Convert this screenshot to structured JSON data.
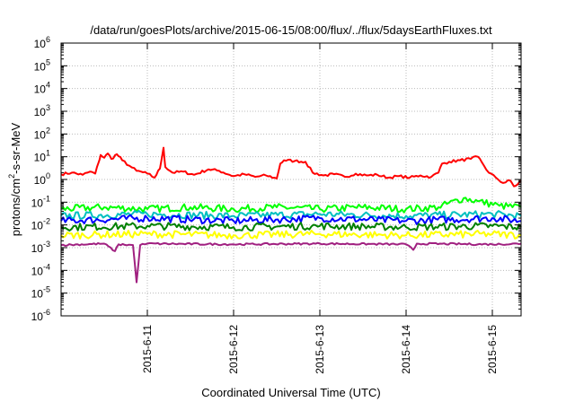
{
  "chart_data": {
    "type": "line",
    "title": "/data/run/goesPlots/archive/2015-06-15/08:00/flux/../flux/5daysEarthFluxes.txt",
    "xlabel": "Coordinated Universal Time (UTC)",
    "ylabel": {
      "prefix": "protons/cm",
      "sup": "2",
      "suffix": "-s-sr-MeV"
    },
    "y_scale": "log",
    "ylim_exp": [
      -6,
      6
    ],
    "y_tick_base": "10",
    "y_ticks": [
      "-6",
      "-5",
      "-4",
      "-3",
      "-2",
      "-1",
      "0",
      "1",
      "2",
      "3",
      "4",
      "5",
      "6"
    ],
    "xlim": [
      "2015-06-10T00:00",
      "2015-06-15T08:00"
    ],
    "x_ticks": [
      {
        "label": "2015-6-11",
        "at": "2015-06-11T00:00"
      },
      {
        "label": "2015-6-12",
        "at": "2015-06-12T00:00"
      },
      {
        "label": "2015-6-13",
        "at": "2015-06-13T00:00"
      },
      {
        "label": "2015-6-14",
        "at": "2015-06-14T00:00"
      },
      {
        "label": "2015-6-15",
        "at": "2015-06-15T00:00"
      }
    ],
    "grid": true,
    "series": [
      {
        "color": "#ff0000",
        "points": [
          [
            "2015-06-10T00:00",
            1.7
          ],
          [
            "2015-06-10T03:00",
            2.0
          ],
          [
            "2015-06-10T06:00",
            1.6
          ],
          [
            "2015-06-10T08:00",
            2.2
          ],
          [
            "2015-06-10T09:30",
            1.8
          ],
          [
            "2015-06-10T10:30",
            6.0
          ],
          [
            "2015-06-10T11:00",
            12
          ],
          [
            "2015-06-10T12:00",
            9
          ],
          [
            "2015-06-10T13:00",
            14
          ],
          [
            "2015-06-10T14:00",
            8
          ],
          [
            "2015-06-10T15:30",
            13
          ],
          [
            "2015-06-10T17:00",
            7
          ],
          [
            "2015-06-10T19:00",
            4
          ],
          [
            "2015-06-10T21:00",
            2.4
          ],
          [
            "2015-06-11T00:00",
            1.8
          ],
          [
            "2015-06-11T02:00",
            1.2
          ],
          [
            "2015-06-11T03:30",
            3.0
          ],
          [
            "2015-06-11T04:30",
            25
          ],
          [
            "2015-06-11T05:00",
            3.5
          ],
          [
            "2015-06-11T07:00",
            2.0
          ],
          [
            "2015-06-11T10:00",
            2.2
          ],
          [
            "2015-06-11T13:00",
            1.6
          ],
          [
            "2015-06-11T17:00",
            2.8
          ],
          [
            "2015-06-11T20:00",
            2.4
          ],
          [
            "2015-06-12T00:00",
            1.4
          ],
          [
            "2015-06-12T03:00",
            1.7
          ],
          [
            "2015-06-12T06:00",
            1.3
          ],
          [
            "2015-06-12T09:00",
            1.5
          ],
          [
            "2015-06-12T12:00",
            1.1
          ],
          [
            "2015-06-12T13:00",
            5
          ],
          [
            "2015-06-12T14:00",
            7
          ],
          [
            "2015-06-12T17:00",
            6.5
          ],
          [
            "2015-06-12T20:00",
            6
          ],
          [
            "2015-06-12T22:00",
            2.0
          ],
          [
            "2015-06-13T01:00",
            1.5
          ],
          [
            "2015-06-13T04:00",
            1.7
          ],
          [
            "2015-06-13T07:00",
            1.3
          ],
          [
            "2015-06-13T10:00",
            1.8
          ],
          [
            "2015-06-13T13:00",
            1.5
          ],
          [
            "2015-06-13T16:00",
            1.6
          ],
          [
            "2015-06-13T19:00",
            1.2
          ],
          [
            "2015-06-13T22:00",
            1.4
          ],
          [
            "2015-06-14T01:00",
            1.2
          ],
          [
            "2015-06-14T04:00",
            1.5
          ],
          [
            "2015-06-14T07:00",
            1.3
          ],
          [
            "2015-06-14T09:00",
            2.0
          ],
          [
            "2015-06-14T10:00",
            5
          ],
          [
            "2015-06-14T12:00",
            6
          ],
          [
            "2015-06-14T15:00",
            7
          ],
          [
            "2015-06-14T18:00",
            8
          ],
          [
            "2015-06-14T20:00",
            10
          ],
          [
            "2015-06-14T21:00",
            6
          ],
          [
            "2015-06-14T23:00",
            2.0
          ],
          [
            "2015-06-15T01:00",
            1.2
          ],
          [
            "2015-06-15T03:00",
            0.7
          ],
          [
            "2015-06-15T05:00",
            0.9
          ],
          [
            "2015-06-15T06:00",
            0.5
          ],
          [
            "2015-06-15T07:00",
            0.6
          ],
          [
            "2015-06-15T08:00",
            0.9
          ]
        ]
      },
      {
        "color": "#00ff00",
        "points": [
          [
            "2015-06-10T00:00",
            0.05
          ],
          [
            "2015-06-10T12:00",
            0.06
          ],
          [
            "2015-06-11T00:00",
            0.05
          ],
          [
            "2015-06-11T12:00",
            0.06
          ],
          [
            "2015-06-12T00:00",
            0.05
          ],
          [
            "2015-06-12T12:00",
            0.06
          ],
          [
            "2015-06-13T00:00",
            0.05
          ],
          [
            "2015-06-13T12:00",
            0.06
          ],
          [
            "2015-06-14T00:00",
            0.05
          ],
          [
            "2015-06-14T09:00",
            0.06
          ],
          [
            "2015-06-14T16:00",
            0.15
          ],
          [
            "2015-06-14T20:00",
            0.11
          ],
          [
            "2015-06-15T02:00",
            0.07
          ],
          [
            "2015-06-15T08:00",
            0.06
          ]
        ]
      },
      {
        "color": "#00c0c0",
        "points": [
          [
            "2015-06-10T00:00",
            0.025
          ],
          [
            "2015-06-11T00:00",
            0.03
          ],
          [
            "2015-06-12T00:00",
            0.025
          ],
          [
            "2015-06-13T00:00",
            0.03
          ],
          [
            "2015-06-14T00:00",
            0.025
          ],
          [
            "2015-06-15T00:00",
            0.03
          ],
          [
            "2015-06-15T08:00",
            0.025
          ]
        ]
      },
      {
        "color": "#0000ff",
        "points": [
          [
            "2015-06-10T00:00",
            0.015
          ],
          [
            "2015-06-11T00:00",
            0.02
          ],
          [
            "2015-06-12T00:00",
            0.015
          ],
          [
            "2015-06-13T00:00",
            0.02
          ],
          [
            "2015-06-14T00:00",
            0.015
          ],
          [
            "2015-06-15T00:00",
            0.02
          ],
          [
            "2015-06-15T08:00",
            0.015
          ]
        ]
      },
      {
        "color": "#008000",
        "points": [
          [
            "2015-06-10T00:00",
            0.008
          ],
          [
            "2015-06-11T00:00",
            0.009
          ],
          [
            "2015-06-12T00:00",
            0.008
          ],
          [
            "2015-06-13T00:00",
            0.009
          ],
          [
            "2015-06-14T00:00",
            0.008
          ],
          [
            "2015-06-15T00:00",
            0.009
          ],
          [
            "2015-06-15T08:00",
            0.008
          ]
        ]
      },
      {
        "color": "#ffff00",
        "points": [
          [
            "2015-06-10T00:00",
            0.0035
          ],
          [
            "2015-06-11T00:00",
            0.004
          ],
          [
            "2015-06-12T00:00",
            0.0035
          ],
          [
            "2015-06-13T00:00",
            0.004
          ],
          [
            "2015-06-14T00:00",
            0.0035
          ],
          [
            "2015-06-15T00:00",
            0.004
          ],
          [
            "2015-06-15T08:00",
            0.0035
          ]
        ]
      },
      {
        "color": "#a02080",
        "points": [
          [
            "2015-06-10T00:00",
            0.0013
          ],
          [
            "2015-06-10T12:00",
            0.0015
          ],
          [
            "2015-06-10T15:00",
            0.0007
          ],
          [
            "2015-06-10T16:00",
            0.0014
          ],
          [
            "2015-06-10T20:00",
            0.0013
          ],
          [
            "2015-06-10T21:00",
            3e-05
          ],
          [
            "2015-06-10T22:00",
            0.0013
          ],
          [
            "2015-06-11T00:00",
            0.0015
          ],
          [
            "2015-06-12T00:00",
            0.0014
          ],
          [
            "2015-06-13T00:00",
            0.0015
          ],
          [
            "2015-06-14T00:00",
            0.0014
          ],
          [
            "2015-06-14T02:00",
            0.0008
          ],
          [
            "2015-06-14T03:00",
            0.0015
          ],
          [
            "2015-06-15T00:00",
            0.0014
          ],
          [
            "2015-06-15T08:00",
            0.0015
          ]
        ]
      }
    ]
  }
}
